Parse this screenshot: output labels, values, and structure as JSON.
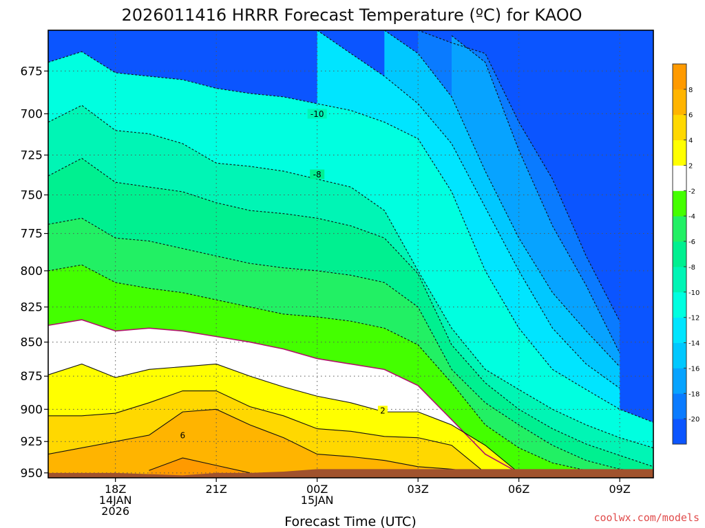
{
  "chart_data": {
    "type": "heatmap",
    "title": "2026011416 HRRR Forecast Temperature (ºC) for KAOO",
    "xlabel": "Forecast Time (UTC)",
    "ylabel": "",
    "x_ticks": [
      {
        "lines": [
          "18Z",
          "14JAN",
          "2026"
        ]
      },
      {
        "lines": [
          "21Z"
        ]
      },
      {
        "lines": [
          "00Z",
          "15JAN"
        ]
      },
      {
        "lines": [
          "03Z"
        ]
      },
      {
        "lines": [
          "06Z"
        ]
      },
      {
        "lines": [
          "09Z"
        ]
      }
    ],
    "x_tick_hours": [
      2,
      5,
      8,
      11,
      14,
      17
    ],
    "x_range_hours": [
      0,
      18
    ],
    "y_ticks": [
      675,
      700,
      725,
      750,
      775,
      800,
      825,
      850,
      875,
      900,
      925,
      950
    ],
    "y_range_hpa": [
      652,
      954
    ],
    "y_scale": "log-pressure",
    "grid": true,
    "colorbar": {
      "boundaries": [
        -22,
        -20,
        -18,
        -16,
        -14,
        -12,
        -10,
        -8,
        -6,
        -4,
        -2,
        2,
        4,
        6,
        8,
        10
      ],
      "labels": [
        "-20",
        "-18",
        "-16",
        "-14",
        "-12",
        "-10",
        "-8",
        "-6",
        "-4",
        "-2",
        "2",
        "4",
        "6",
        "8"
      ],
      "colors": [
        "#0b55ff",
        "#0a7bff",
        "#07a3ff",
        "#00c8ff",
        "#00e5ff",
        "#00ffe0",
        "#00f5b5",
        "#00f090",
        "#22f064",
        "#44ff00",
        "#ffffff",
        "#ffff00",
        "#ffd800",
        "#ffb400",
        "#ff9a00"
      ]
    },
    "surface": {
      "pressure_hpa": [
        950,
        950,
        950,
        951,
        952,
        950,
        950,
        949,
        947,
        947,
        947,
        947,
        947,
        947,
        947,
        947,
        947,
        947,
        947
      ],
      "color": "#a0522d"
    },
    "isotherms": [
      {
        "value": -20,
        "p": [
          null,
          null,
          null,
          null,
          null,
          null,
          null,
          null,
          null,
          null,
          null,
          652,
          659,
          665,
          705,
          740,
          790,
          835,
          null
        ]
      },
      {
        "value": -18,
        "p": [
          null,
          null,
          null,
          null,
          null,
          null,
          null,
          null,
          null,
          null,
          null,
          null,
          655,
          670,
          722,
          770,
          810,
          858,
          null
        ]
      },
      {
        "value": -16,
        "p": [
          null,
          null,
          null,
          null,
          null,
          null,
          null,
          null,
          null,
          null,
          652,
          665,
          690,
          735,
          778,
          815,
          842,
          868,
          null
        ]
      },
      {
        "value": -14,
        "p": [
          null,
          null,
          null,
          null,
          null,
          null,
          null,
          null,
          652,
          665,
          678,
          694,
          718,
          758,
          800,
          840,
          866,
          884,
          null
        ]
      },
      {
        "value": -12,
        "p": [
          670,
          664,
          676,
          678,
          680,
          685,
          688,
          690,
          694,
          698,
          705,
          715,
          748,
          800,
          840,
          870,
          885,
          900,
          910
        ]
      },
      {
        "value": -10,
        "p": [
          705,
          695,
          710,
          712,
          718,
          730,
          732,
          735,
          740,
          745,
          760,
          800,
          840,
          870,
          885,
          900,
          912,
          922,
          930
        ]
      },
      {
        "value": -8,
        "p": [
          738,
          727,
          742,
          745,
          748,
          755,
          760,
          762,
          765,
          770,
          778,
          802,
          852,
          880,
          900,
          915,
          927,
          936,
          945
        ]
      },
      {
        "value": -6,
        "p": [
          769,
          765,
          778,
          780,
          785,
          790,
          795,
          798,
          800,
          803,
          808,
          825,
          870,
          895,
          912,
          928,
          940,
          947,
          950
        ]
      },
      {
        "value": -4,
        "p": [
          800,
          796,
          808,
          812,
          815,
          820,
          825,
          830,
          832,
          835,
          840,
          852,
          880,
          912,
          930,
          942,
          948,
          950,
          951
        ]
      },
      {
        "value": -2,
        "p": [
          838,
          834,
          842,
          840,
          842,
          846,
          850,
          855,
          862,
          866,
          870,
          882,
          908,
          935,
          950,
          null,
          null,
          null,
          null
        ]
      },
      {
        "value": 2,
        "p": [
          874,
          866,
          876,
          870,
          868,
          866,
          875,
          883,
          890,
          895,
          902,
          902,
          912,
          928,
          950,
          null,
          null,
          null,
          null
        ]
      },
      {
        "value": 4,
        "p": [
          905,
          905,
          903,
          895,
          886,
          886,
          898,
          905,
          915,
          917,
          921,
          922,
          928,
          950,
          null,
          null,
          null,
          null,
          null
        ]
      },
      {
        "value": 6,
        "p": [
          935,
          930,
          925,
          920,
          902,
          900,
          912,
          922,
          935,
          937,
          940,
          945,
          947,
          950,
          null,
          null,
          null,
          null,
          null
        ]
      },
      {
        "value": 8,
        "p": [
          null,
          null,
          null,
          948,
          938,
          944,
          950,
          null,
          null,
          null,
          null,
          null,
          null,
          null,
          null,
          null,
          null,
          null,
          null
        ]
      }
    ],
    "contour_labels": [
      {
        "text": "-10",
        "hour": 8,
        "p": 700
      },
      {
        "text": "-8",
        "hour": 8,
        "p": 737
      },
      {
        "text": "2",
        "hour": 9.95,
        "p": 901
      },
      {
        "text": "6",
        "hour": 4.0,
        "p": 920
      }
    ]
  },
  "credit": "coolwx.com/models"
}
